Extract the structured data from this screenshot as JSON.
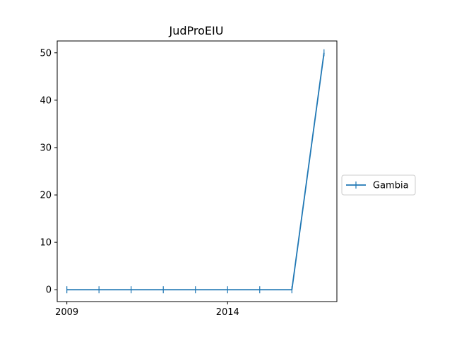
{
  "chart_data": {
    "type": "line",
    "title": "JudProEIU",
    "xlabel": "",
    "ylabel": "",
    "x": [
      2009,
      2010,
      2011,
      2012,
      2013,
      2014,
      2015,
      2016,
      2017
    ],
    "series": [
      {
        "name": "Gambia",
        "values": [
          0,
          0,
          0,
          0,
          0,
          0,
          0,
          0,
          50
        ],
        "color": "#1f77b4",
        "marker": "vline"
      }
    ],
    "xlim": [
      2008.7,
      2017.4
    ],
    "ylim": [
      -2.5,
      52.5
    ],
    "xticks": [
      2009,
      2014
    ],
    "xtick_labels": [
      "2009",
      "2014"
    ],
    "yticks": [
      0,
      10,
      20,
      30,
      40,
      50
    ],
    "ytick_labels": [
      "0",
      "10",
      "20",
      "30",
      "40",
      "50"
    ],
    "grid": false,
    "legend": {
      "placement": "right-outside",
      "entries": [
        "Gambia"
      ]
    }
  }
}
